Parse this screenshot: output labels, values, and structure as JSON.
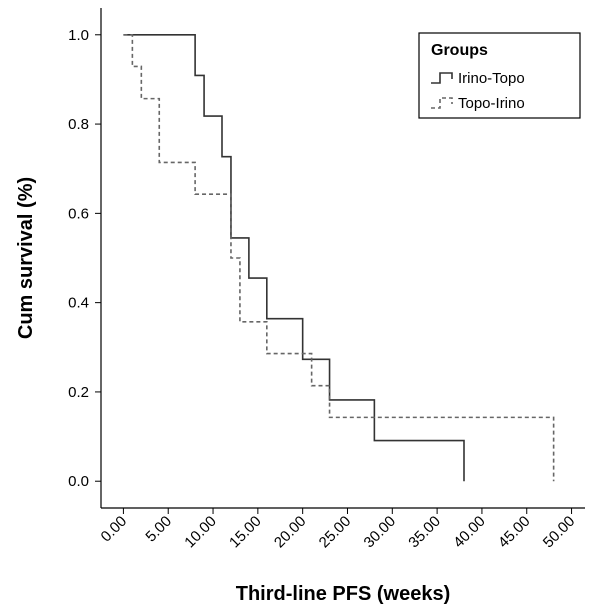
{
  "chart_data": {
    "type": "step",
    "x_label": "Third-line PFS (weeks)",
    "y_label": "Cum survival (%)",
    "legend_title": "Groups",
    "legend_position": "upper right",
    "xlim": [
      -2.5,
      51.5
    ],
    "ylim": [
      -0.06,
      1.06
    ],
    "xticks": [
      {
        "value": 0,
        "label": "0.00"
      },
      {
        "value": 5,
        "label": "5.00"
      },
      {
        "value": 10,
        "label": "10.00"
      },
      {
        "value": 15,
        "label": "15.00"
      },
      {
        "value": 20,
        "label": "20.00"
      },
      {
        "value": 25,
        "label": "25.00"
      },
      {
        "value": 30,
        "label": "30.00"
      },
      {
        "value": 35,
        "label": "35.00"
      },
      {
        "value": 40,
        "label": "40.00"
      },
      {
        "value": 45,
        "label": "45.00"
      },
      {
        "value": 50,
        "label": "50.00"
      }
    ],
    "yticks": [
      {
        "value": 0,
        "label": "0.0"
      },
      0.2,
      0.4,
      0.6,
      0.8,
      {
        "value": 1,
        "label": "1.0"
      }
    ],
    "series": [
      {
        "name": "Irino-Topo",
        "color": "#333333",
        "dash": "solid",
        "x": [
          0,
          8,
          9,
          11,
          12,
          14,
          16,
          20,
          23,
          28,
          38
        ],
        "values": [
          1.0,
          0.909,
          0.818,
          0.727,
          0.545,
          0.455,
          0.364,
          0.273,
          0.182,
          0.091,
          0.0
        ]
      },
      {
        "name": "Topo-Irino",
        "color": "#666666",
        "dash": "dashed",
        "x": [
          0,
          1,
          2,
          4,
          8,
          12,
          13,
          16,
          21,
          23,
          48
        ],
        "values": [
          1.0,
          0.929,
          0.857,
          0.714,
          0.643,
          0.5,
          0.357,
          0.286,
          0.214,
          0.143,
          0.0
        ]
      }
    ]
  }
}
